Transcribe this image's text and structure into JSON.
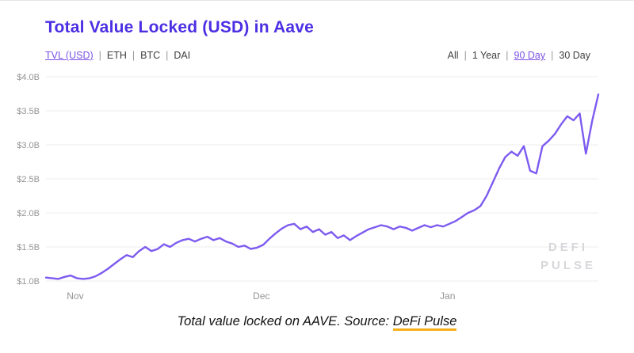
{
  "header": {
    "title": "Total Value Locked (USD) in Aave"
  },
  "asset_tabs": {
    "separator": "|",
    "items": [
      {
        "label": "TVL (USD)",
        "active": true
      },
      {
        "label": "ETH",
        "active": false
      },
      {
        "label": "BTC",
        "active": false
      },
      {
        "label": "DAI",
        "active": false
      }
    ]
  },
  "range_tabs": {
    "separator": "|",
    "items": [
      {
        "label": "All",
        "active": false
      },
      {
        "label": "1 Year",
        "active": false
      },
      {
        "label": "90 Day",
        "active": true
      },
      {
        "label": "30 Day",
        "active": false
      }
    ]
  },
  "watermark": {
    "line1": "DEFI",
    "line2": "PULSE"
  },
  "caption": {
    "text": "Total value locked on AAVE. Source: ",
    "link": "DeFi Pulse"
  },
  "colors": {
    "title_color": "#4B2FE3",
    "accent": "#7B52E6",
    "line": "#7D5BF0",
    "grid": "#ECECEC",
    "axis_text": "#949494",
    "watermark": "#D7D7DB",
    "caption_underline": "#F5AF19"
  },
  "chart_data": {
    "type": "line",
    "title": "Total Value Locked (USD) in Aave",
    "xlabel": "",
    "ylabel": "",
    "ylim": [
      1.0,
      4.0
    ],
    "grid": "horizontal-only",
    "legend": "none",
    "x_unit": "days over 90 Day range (early Nov to early Feb)",
    "yticks": [
      {
        "value": 1.0,
        "label": "$1.0B"
      },
      {
        "value": 1.5,
        "label": "$1.5B"
      },
      {
        "value": 2.0,
        "label": "$2.0B"
      },
      {
        "value": 2.5,
        "label": "$2.5B"
      },
      {
        "value": 3.0,
        "label": "$3.0B"
      },
      {
        "value": 3.5,
        "label": "$3.5B"
      },
      {
        "value": 4.0,
        "label": "$4.0B"
      }
    ],
    "xticks": [
      {
        "pos": 0.053,
        "label": "Nov"
      },
      {
        "pos": 0.39,
        "label": "Dec"
      },
      {
        "pos": 0.727,
        "label": "Jan"
      }
    ],
    "series": [
      {
        "name": "TVL (USD)",
        "color": "#7D5BF0",
        "values": [
          1.05,
          1.04,
          1.03,
          1.06,
          1.08,
          1.04,
          1.03,
          1.04,
          1.07,
          1.12,
          1.18,
          1.25,
          1.32,
          1.38,
          1.35,
          1.44,
          1.5,
          1.44,
          1.47,
          1.54,
          1.5,
          1.56,
          1.6,
          1.62,
          1.58,
          1.62,
          1.65,
          1.6,
          1.63,
          1.58,
          1.55,
          1.5,
          1.52,
          1.47,
          1.49,
          1.53,
          1.62,
          1.7,
          1.77,
          1.82,
          1.84,
          1.76,
          1.8,
          1.72,
          1.76,
          1.68,
          1.72,
          1.63,
          1.67,
          1.6,
          1.66,
          1.71,
          1.76,
          1.79,
          1.82,
          1.8,
          1.76,
          1.8,
          1.78,
          1.74,
          1.78,
          1.82,
          1.79,
          1.82,
          1.8,
          1.84,
          1.88,
          1.94,
          2.0,
          2.04,
          2.1,
          2.25,
          2.45,
          2.65,
          2.82,
          2.9,
          2.84,
          2.98,
          2.62,
          2.58,
          2.98,
          3.06,
          3.16,
          3.3,
          3.42,
          3.36,
          3.46,
          2.87,
          3.35,
          3.74
        ]
      }
    ]
  }
}
